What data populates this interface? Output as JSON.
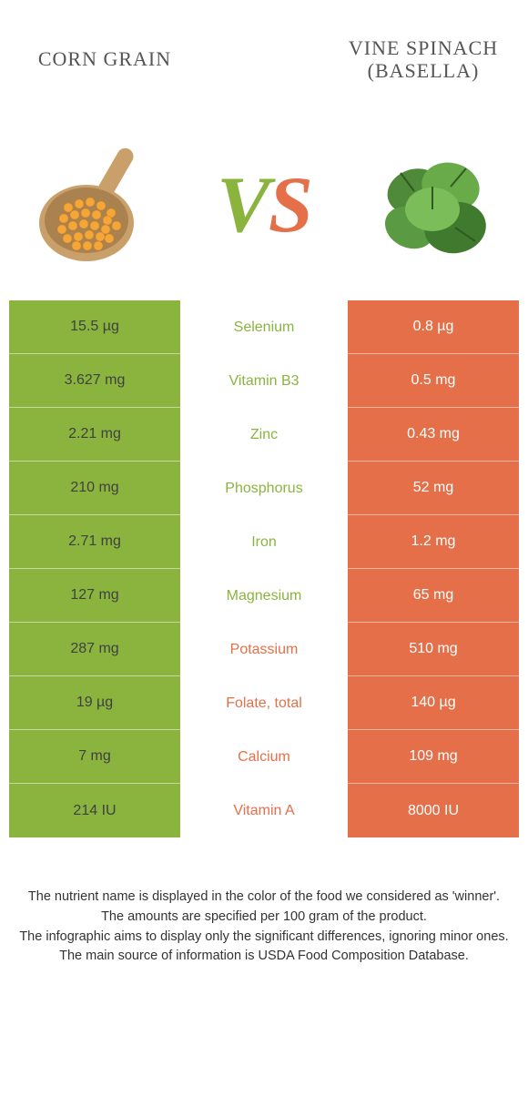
{
  "colors": {
    "left_bg": "#8bb43f",
    "right_bg": "#e56f48",
    "left_text": "#404040",
    "right_text": "#ffffff",
    "mid_left_win": "#8bb43f",
    "mid_right_win": "#e56f48",
    "page_bg": "#ffffff",
    "title_color": "#555555"
  },
  "header": {
    "left_title": "CORN GRAIN",
    "right_title_line1": "VINE SPINACH",
    "right_title_line2": "(BASELLA)"
  },
  "vs": {
    "v": "V",
    "s": "S"
  },
  "rows": [
    {
      "label": "Selenium",
      "left": "15.5 µg",
      "right": "0.8 µg",
      "winner": "left"
    },
    {
      "label": "Vitamin B3",
      "left": "3.627 mg",
      "right": "0.5 mg",
      "winner": "left"
    },
    {
      "label": "Zinc",
      "left": "2.21 mg",
      "right": "0.43 mg",
      "winner": "left"
    },
    {
      "label": "Phosphorus",
      "left": "210 mg",
      "right": "52 mg",
      "winner": "left"
    },
    {
      "label": "Iron",
      "left": "2.71 mg",
      "right": "1.2 mg",
      "winner": "left"
    },
    {
      "label": "Magnesium",
      "left": "127 mg",
      "right": "65 mg",
      "winner": "left"
    },
    {
      "label": "Potassium",
      "left": "287 mg",
      "right": "510 mg",
      "winner": "right"
    },
    {
      "label": "Folate, total",
      "left": "19 µg",
      "right": "140 µg",
      "winner": "right"
    },
    {
      "label": "Calcium",
      "left": "7 mg",
      "right": "109 mg",
      "winner": "right"
    },
    {
      "label": "Vitamin A",
      "left": "214 IU",
      "right": "8000 IU",
      "winner": "right"
    }
  ],
  "footnotes": [
    "The nutrient name is displayed in the color of the food we considered as 'winner'.",
    "The amounts are specified per 100 gram of the product.",
    "The infographic aims to display only the significant differences, ignoring minor ones.",
    "The main source of information is USDA Food Composition Database."
  ]
}
